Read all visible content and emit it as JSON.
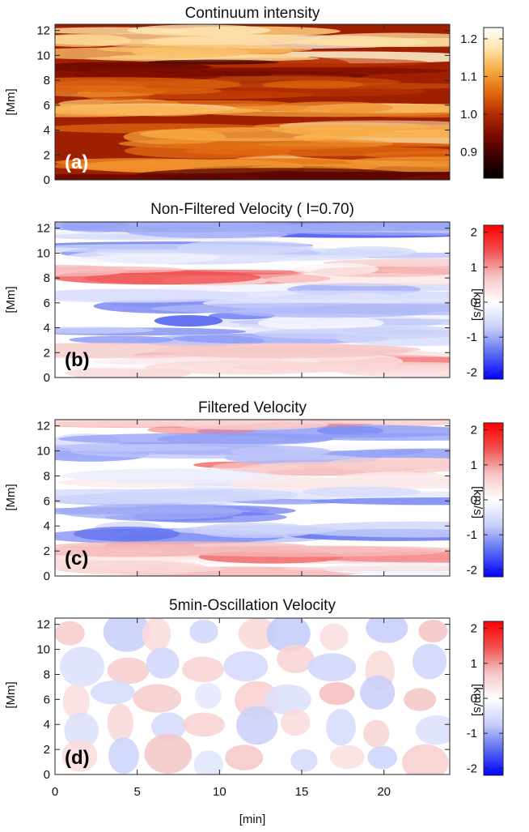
{
  "colors": {
    "heat": [
      "#000000",
      "#3a0000",
      "#7a0a00",
      "#b52d00",
      "#e26a10",
      "#f7a940",
      "#ffe3a8",
      "#ffffff"
    ],
    "diverging": [
      "#0000ff",
      "#5a6cf0",
      "#c8cffa",
      "#ffffff",
      "#f6c4c4",
      "#f05050",
      "#ff0000"
    ]
  },
  "chart_data": [
    {
      "id": "a",
      "type": "heatmap",
      "title": "Continuum intensity",
      "panel_label": "(a)",
      "xlabel": "[min]",
      "ylabel": "[Mm]",
      "xlim": [
        0,
        24
      ],
      "ylim": [
        0,
        12.5
      ],
      "xticks": [
        "0",
        "5",
        "10",
        "15",
        "20"
      ],
      "yticks": [
        "0",
        "2",
        "4",
        "6",
        "8",
        "10",
        "12"
      ],
      "colorbar": {
        "label": "",
        "range": [
          0.83,
          1.23
        ],
        "ticks": [
          "0.9",
          "1.0",
          "1.1",
          "1.2"
        ],
        "colormap": "heat"
      },
      "bands": [
        {
          "y": 11.2,
          "value": 1.17
        },
        {
          "y": 10.3,
          "value": 1.14
        },
        {
          "y": 8.7,
          "value": 0.95
        },
        {
          "y": 7.4,
          "value": 1.05
        },
        {
          "y": 5.6,
          "value": 1.13
        },
        {
          "y": 3.8,
          "value": 1.12
        },
        {
          "y": 2.2,
          "value": 1.06
        },
        {
          "y": 1.2,
          "value": 1.1
        },
        {
          "y": 0.3,
          "value": 0.92
        }
      ]
    },
    {
      "id": "b",
      "type": "heatmap",
      "title": "Non-Filtered Velocity ( I=0.70)",
      "panel_label": "(b)",
      "xlabel": "[min]",
      "ylabel": "[Mm]",
      "xlim": [
        0,
        24
      ],
      "ylim": [
        0,
        12.5
      ],
      "xticks": [
        "0",
        "5",
        "10",
        "15",
        "20"
      ],
      "yticks": [
        "0",
        "2",
        "4",
        "6",
        "8",
        "10",
        "12"
      ],
      "colorbar": {
        "label": "[km/s]",
        "range": [
          -2.2,
          2.2
        ],
        "ticks": [
          "-2",
          "-1",
          "0",
          "1",
          "2"
        ],
        "colormap": "diverging"
      },
      "bands": [
        {
          "y": 11.8,
          "value": -1.0
        },
        {
          "y": 10.2,
          "value": -0.6
        },
        {
          "y": 8.5,
          "value": 0.8
        },
        {
          "y": 6.8,
          "value": -0.5
        },
        {
          "y": 5.4,
          "value": -0.9
        },
        {
          "y": 3.6,
          "value": -0.7
        },
        {
          "y": 2.0,
          "value": 0.7
        },
        {
          "y": 0.6,
          "value": 0.5
        }
      ]
    },
    {
      "id": "c",
      "type": "heatmap",
      "title": "Filtered Velocity",
      "panel_label": "(c)",
      "xlabel": "[min]",
      "ylabel": "[Mm]",
      "xlim": [
        0,
        24
      ],
      "ylim": [
        0,
        12.5
      ],
      "xticks": [
        "0",
        "5",
        "10",
        "15",
        "20"
      ],
      "yticks": [
        "0",
        "2",
        "4",
        "6",
        "8",
        "10",
        "12"
      ],
      "colorbar": {
        "label": "[km/s]",
        "range": [
          -2.2,
          2.2
        ],
        "ticks": [
          "-2",
          "-1",
          "0",
          "1",
          "2"
        ],
        "colormap": "diverging"
      },
      "bands": [
        {
          "y": 12.2,
          "value": 0.5
        },
        {
          "y": 11.1,
          "value": -1.1
        },
        {
          "y": 10.0,
          "value": -0.8
        },
        {
          "y": 8.8,
          "value": 0.6
        },
        {
          "y": 7.6,
          "value": 0.3
        },
        {
          "y": 6.6,
          "value": -0.6
        },
        {
          "y": 5.2,
          "value": -1.0
        },
        {
          "y": 3.8,
          "value": -0.7
        },
        {
          "y": 2.2,
          "value": 0.8
        },
        {
          "y": 0.8,
          "value": 0.5
        }
      ]
    },
    {
      "id": "d",
      "type": "heatmap",
      "title": "5min-Oscillation Velocity",
      "panel_label": "(d)",
      "xlabel": "[min]",
      "ylabel": "[Mm]",
      "xlim": [
        0,
        24
      ],
      "ylim": [
        0,
        12.5
      ],
      "xticks": [
        "0",
        "5",
        "10",
        "15",
        "20"
      ],
      "yticks": [
        "0",
        "2",
        "4",
        "6",
        "8",
        "10",
        "12"
      ],
      "colorbar": {
        "label": "[km/s]",
        "range": [
          -2.2,
          2.2
        ],
        "ticks": [
          "-2",
          "-1",
          "0",
          "1",
          "2"
        ],
        "colormap": "diverging"
      },
      "bands": [
        {
          "y": 10.0,
          "value": 0.3
        },
        {
          "y": 7.5,
          "value": -0.3
        },
        {
          "y": 5.0,
          "value": 0.2
        },
        {
          "y": 2.5,
          "value": -0.3
        }
      ]
    }
  ]
}
